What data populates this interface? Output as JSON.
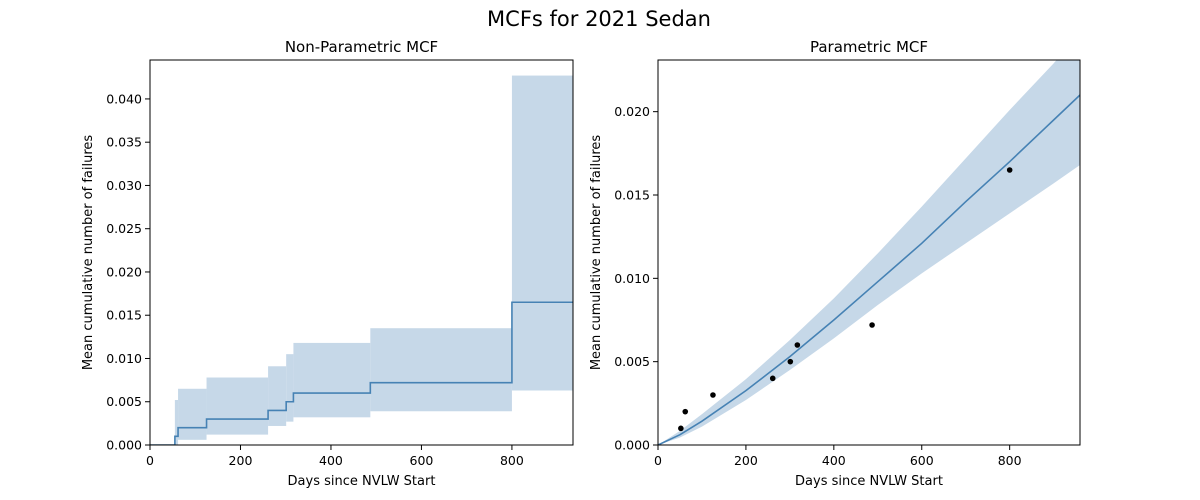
{
  "figure": {
    "title": "MCFs for 2021 Sedan"
  },
  "chart_data": [
    {
      "type": "line",
      "title": "Non-Parametric MCF",
      "xlabel": "Days since NVLW Start",
      "ylabel": "Mean cumulative number of failures",
      "xlim": [
        0,
        935
      ],
      "ylim": [
        0,
        0.0445
      ],
      "xticks": [
        0,
        200,
        400,
        600,
        800
      ],
      "yticks": [
        0.0,
        0.005,
        0.01,
        0.015,
        0.02,
        0.025,
        0.03,
        0.035,
        0.04
      ],
      "ytick_labels": [
        "0.000",
        "0.005",
        "0.010",
        "0.015",
        "0.020",
        "0.025",
        "0.030",
        "0.035",
        "0.040"
      ],
      "grid": false,
      "line_color": "#4682b4",
      "band_color": "#c6d8e8",
      "step": {
        "x": [
          0,
          55,
          62,
          125,
          261,
          301,
          317,
          487,
          800,
          935
        ],
        "y": [
          0.0,
          0.001,
          0.002,
          0.003,
          0.004,
          0.005,
          0.006,
          0.0072,
          0.0165,
          0.0165
        ]
      },
      "band": {
        "x": [
          55,
          62,
          125,
          261,
          301,
          317,
          487,
          800
        ],
        "lower": [
          0.0,
          0.0006,
          0.0012,
          0.0022,
          0.0027,
          0.0032,
          0.0039,
          0.0063
        ],
        "upper": [
          0.0052,
          0.0065,
          0.0078,
          0.0091,
          0.0105,
          0.0118,
          0.0135,
          0.0427
        ]
      }
    },
    {
      "type": "line",
      "title": "Parametric MCF",
      "xlabel": "Days since NVLW Start",
      "ylabel": "Mean cumulative number of failures",
      "xlim": [
        0,
        960
      ],
      "ylim": [
        0,
        0.0231
      ],
      "xticks": [
        0,
        200,
        400,
        600,
        800
      ],
      "yticks": [
        0.0,
        0.005,
        0.01,
        0.015,
        0.02
      ],
      "ytick_labels": [
        "0.000",
        "0.005",
        "0.010",
        "0.015",
        "0.020"
      ],
      "grid": false,
      "line_color": "#4682b4",
      "band_color": "#c6d8e8",
      "point_color": "#000000",
      "fit": {
        "x": [
          0,
          50,
          100,
          200,
          300,
          400,
          500,
          600,
          700,
          800,
          900,
          960
        ],
        "y": [
          0.0,
          0.00062,
          0.00143,
          0.00326,
          0.0053,
          0.0075,
          0.0098,
          0.0121,
          0.0146,
          0.017,
          0.0195,
          0.021
        ],
        "lower": [
          0.0,
          0.00045,
          0.0011,
          0.0027,
          0.0045,
          0.0064,
          0.0084,
          0.0103,
          0.0121,
          0.0139,
          0.0157,
          0.0168
        ],
        "upper": [
          0.0,
          0.00085,
          0.00185,
          0.00395,
          0.0063,
          0.0088,
          0.0115,
          0.0143,
          0.0172,
          0.0201,
          0.0229,
          0.0247
        ]
      },
      "points": {
        "x": [
          52,
          62,
          125,
          261,
          301,
          317,
          487,
          800
        ],
        "y": [
          0.001,
          0.002,
          0.003,
          0.004,
          0.005,
          0.006,
          0.0072,
          0.0165
        ]
      }
    }
  ]
}
